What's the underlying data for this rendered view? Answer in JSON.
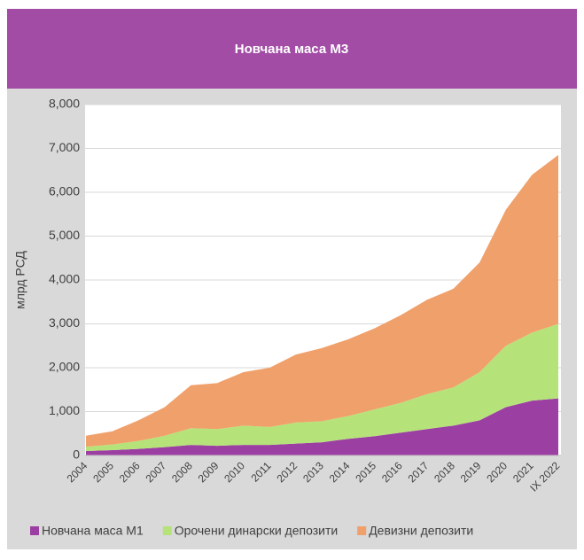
{
  "chart_data": {
    "type": "stacked_area",
    "title": "Новчана маса М3",
    "y_label": "млрд РСД",
    "categories": [
      "2004",
      "2005",
      "2006",
      "2007",
      "2008",
      "2009",
      "2010",
      "2011",
      "2012",
      "2013",
      "2014",
      "2015",
      "2016",
      "2017",
      "2018",
      "2019",
      "2020",
      "2021",
      "IX 2022"
    ],
    "series": [
      {
        "name": "Новчана маса М1",
        "color": "#9c3fa3",
        "values": [
          100,
          120,
          150,
          190,
          240,
          220,
          240,
          240,
          270,
          300,
          380,
          440,
          520,
          600,
          680,
          800,
          1100,
          1250,
          1300
        ]
      },
      {
        "name": "Орочени динарски депозити",
        "color": "#b5e37a",
        "values": [
          100,
          130,
          180,
          260,
          380,
          380,
          440,
          410,
          480,
          480,
          520,
          610,
          680,
          800,
          870,
          1100,
          1400,
          1550,
          1700
        ]
      },
      {
        "name": "Девизни депозити",
        "color": "#f0a06a",
        "values": [
          250,
          300,
          470,
          650,
          980,
          1050,
          1220,
          1350,
          1550,
          1670,
          1750,
          1850,
          2000,
          2150,
          2250,
          2500,
          3100,
          3600,
          3850
        ]
      }
    ],
    "ylim": [
      0,
      8000
    ],
    "yticks": [
      0,
      {
        "value": 1000,
        "label": "1,000"
      },
      {
        "value": 2000,
        "label": "2,000"
      },
      {
        "value": 3000,
        "label": "3,000"
      },
      {
        "value": 4000,
        "label": "4,000"
      },
      {
        "value": 5000,
        "label": "5,000"
      },
      {
        "value": 6000,
        "label": "6,000"
      },
      {
        "value": 7000,
        "label": "7,000"
      },
      {
        "value": 8000,
        "label": "8,000"
      }
    ],
    "grid": true,
    "legend": "bottom"
  }
}
